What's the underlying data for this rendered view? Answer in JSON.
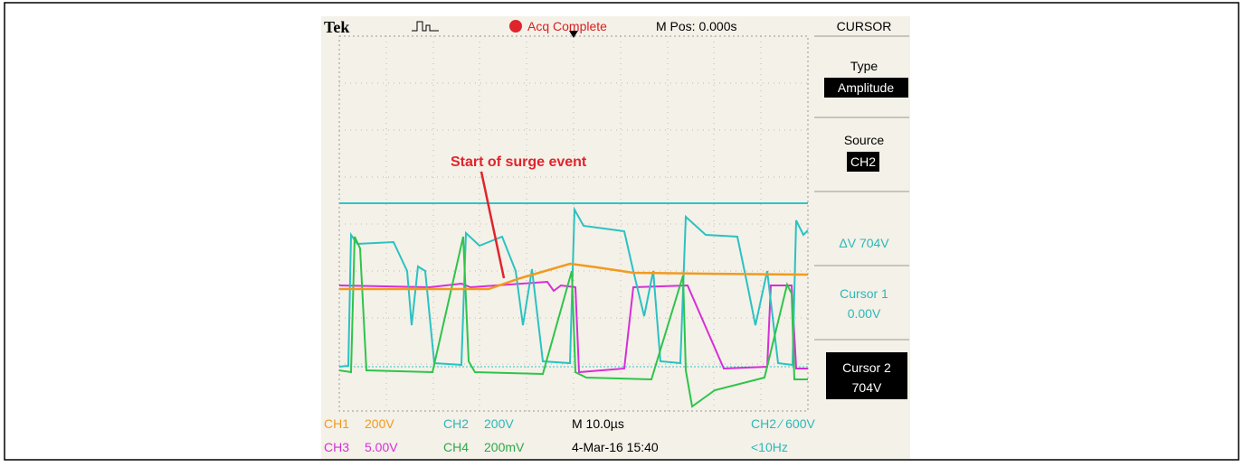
{
  "header": {
    "brand": "Tek",
    "status": "Acq Complete",
    "position": "M Pos: 0.000s",
    "menu": "CURSOR"
  },
  "menu": {
    "type_label": "Type",
    "type_value": "Amplitude",
    "source_label": "Source",
    "source_value": "CH2",
    "delta": "ΔV 704V",
    "cursor1_label": "Cursor 1",
    "cursor1_value": "0.00V",
    "cursor2_label": "Cursor 2",
    "cursor2_value": "704V"
  },
  "annotation": "Start of surge event",
  "footer": {
    "row1": [
      "CH1",
      "200V",
      "CH2",
      "200V",
      "M 10.0µs",
      "CH2 ∕ 600V"
    ],
    "row2": [
      "CH3",
      "5.00V",
      "CH4",
      "200mV",
      "4-Mar-16 15:40",
      "<10Hz"
    ]
  }
}
